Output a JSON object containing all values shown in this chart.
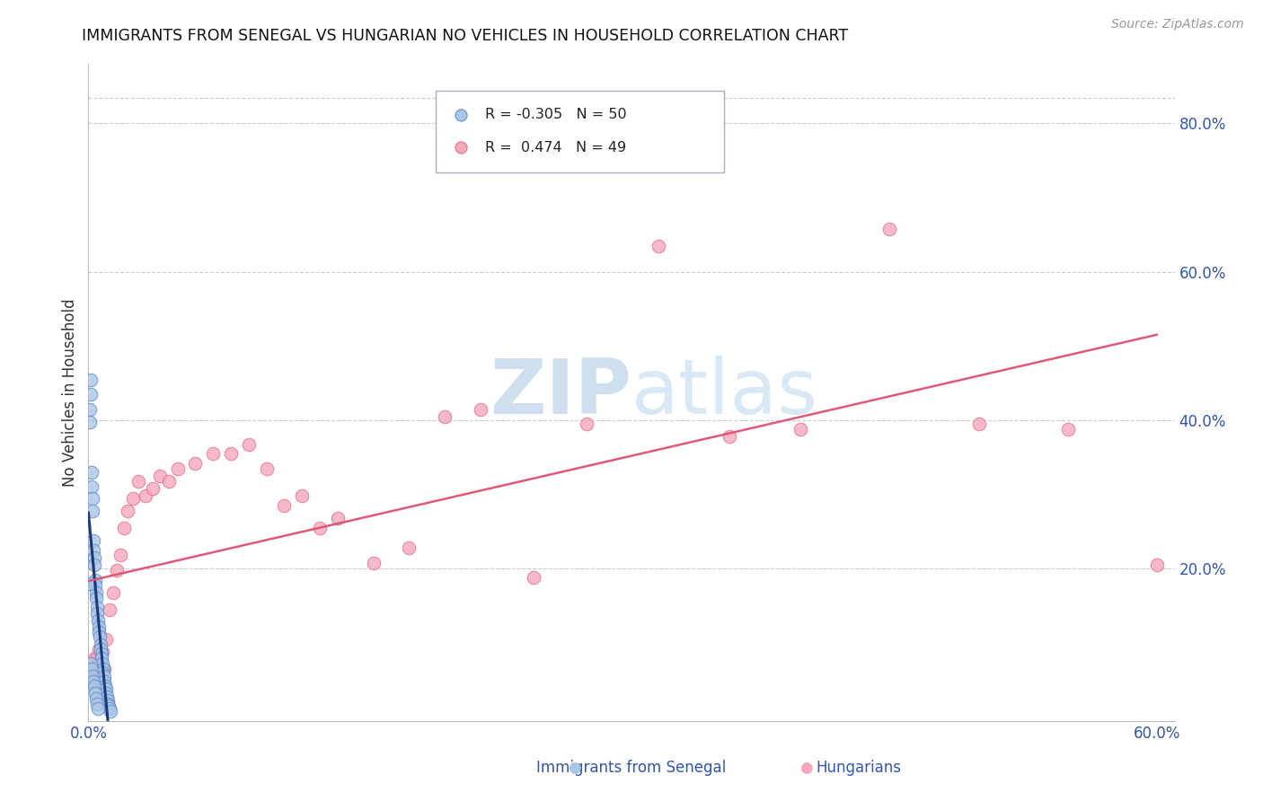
{
  "title": "IMMIGRANTS FROM SENEGAL VS HUNGARIAN NO VEHICLES IN HOUSEHOLD CORRELATION CHART",
  "source": "Source: ZipAtlas.com",
  "ylabel": "No Vehicles in Household",
  "xlim": [
    0.0,
    0.61
  ],
  "ylim": [
    -0.005,
    0.88
  ],
  "x_tick_vals": [
    0.0,
    0.1,
    0.2,
    0.3,
    0.4,
    0.5,
    0.6
  ],
  "x_tick_labels": [
    "0.0%",
    "",
    "",
    "",
    "",
    "",
    "60.0%"
  ],
  "y_tick_vals": [
    0.2,
    0.4,
    0.6,
    0.8
  ],
  "y_tick_labels": [
    "20.0%",
    "40.0%",
    "60.0%",
    "80.0%"
  ],
  "senegal_color": "#aac4e4",
  "senegal_edge_color": "#5588cc",
  "hungarian_color": "#f4a8ba",
  "hungarian_edge_color": "#e06888",
  "trend_senegal_color": "#1a3a7a",
  "trend_hungarian_color": "#e05878",
  "watermark_color": "#d0dff0",
  "background_color": "#ffffff",
  "grid_color": "#cccccc",
  "legend_senegal_R": "-0.305",
  "legend_senegal_N": "50",
  "legend_hungarian_R": "0.474",
  "legend_hungarian_N": "49",
  "senegal_x": [
    0.0012,
    0.0015,
    0.0008,
    0.001,
    0.002,
    0.0018,
    0.0022,
    0.0025,
    0.003,
    0.0028,
    0.0032,
    0.0035,
    0.004,
    0.0038,
    0.0042,
    0.0045,
    0.005,
    0.0048,
    0.0055,
    0.0058,
    0.006,
    0.0065,
    0.007,
    0.0068,
    0.0075,
    0.0072,
    0.008,
    0.0085,
    0.0078,
    0.009,
    0.0088,
    0.0095,
    0.01,
    0.0098,
    0.0105,
    0.011,
    0.0108,
    0.0115,
    0.012,
    0.0125,
    0.0015,
    0.002,
    0.0025,
    0.003,
    0.0035,
    0.004,
    0.0045,
    0.001,
    0.005,
    0.0055
  ],
  "senegal_y": [
    0.455,
    0.435,
    0.415,
    0.398,
    0.33,
    0.31,
    0.295,
    0.278,
    0.238,
    0.225,
    0.215,
    0.205,
    0.185,
    0.178,
    0.168,
    0.16,
    0.148,
    0.14,
    0.13,
    0.122,
    0.115,
    0.108,
    0.098,
    0.092,
    0.085,
    0.08,
    0.072,
    0.065,
    0.06,
    0.055,
    0.048,
    0.042,
    0.038,
    0.032,
    0.028,
    0.022,
    0.018,
    0.015,
    0.012,
    0.008,
    0.072,
    0.065,
    0.055,
    0.048,
    0.042,
    0.032,
    0.025,
    0.18,
    0.018,
    0.012
  ],
  "hungarian_x": [
    0.0008,
    0.0015,
    0.002,
    0.0025,
    0.003,
    0.0035,
    0.004,
    0.0045,
    0.005,
    0.006,
    0.007,
    0.008,
    0.009,
    0.01,
    0.012,
    0.014,
    0.016,
    0.018,
    0.02,
    0.022,
    0.025,
    0.028,
    0.032,
    0.036,
    0.04,
    0.045,
    0.05,
    0.06,
    0.07,
    0.08,
    0.09,
    0.1,
    0.11,
    0.12,
    0.13,
    0.14,
    0.16,
    0.18,
    0.2,
    0.22,
    0.25,
    0.28,
    0.32,
    0.36,
    0.4,
    0.45,
    0.5,
    0.55,
    0.6
  ],
  "hungarian_y": [
    0.068,
    0.055,
    0.048,
    0.062,
    0.078,
    0.055,
    0.068,
    0.048,
    0.082,
    0.092,
    0.075,
    0.088,
    0.065,
    0.105,
    0.145,
    0.168,
    0.198,
    0.218,
    0.255,
    0.278,
    0.295,
    0.318,
    0.298,
    0.308,
    0.325,
    0.318,
    0.335,
    0.342,
    0.355,
    0.355,
    0.368,
    0.335,
    0.285,
    0.298,
    0.255,
    0.268,
    0.208,
    0.228,
    0.405,
    0.415,
    0.188,
    0.395,
    0.635,
    0.378,
    0.388,
    0.658,
    0.395,
    0.388,
    0.205
  ]
}
